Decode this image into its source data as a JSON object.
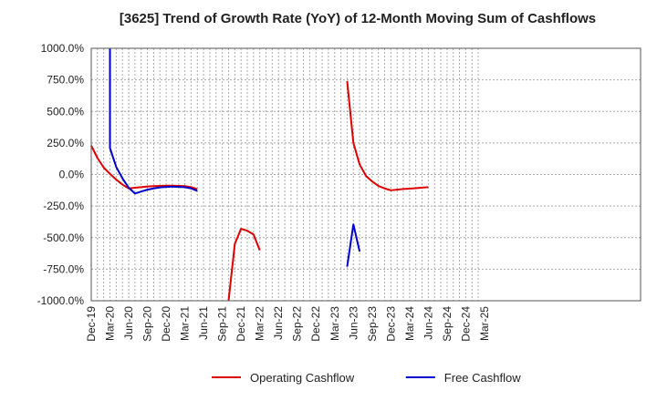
{
  "chart_data": {
    "type": "line",
    "title": "[3625]  Trend of Growth Rate (YoY) of 12-Month Moving Sum of Cashflows",
    "xlabel": "",
    "ylabel": "",
    "ylim": [
      -1000,
      1000
    ],
    "yticks": [
      "1000.0%",
      "750.0%",
      "500.0%",
      "250.0%",
      "0.0%",
      "-250.0%",
      "-500.0%",
      "-750.0%",
      "-1000.0%"
    ],
    "ytick_values": [
      1000,
      750,
      500,
      250,
      0,
      -250,
      -500,
      -750,
      -1000
    ],
    "x_categories": [
      "Dec-19",
      "Mar-20",
      "Jun-20",
      "Sep-20",
      "Dec-20",
      "Mar-21",
      "Jun-21",
      "Sep-21",
      "Dec-21",
      "Mar-22",
      "Jun-22",
      "Sep-22",
      "Dec-22",
      "Mar-23",
      "Jun-23",
      "Sep-23",
      "Dec-23",
      "Mar-24",
      "Jun-24",
      "Sep-24",
      "Dec-24",
      "Mar-25"
    ],
    "grid": true,
    "legend_position": "bottom",
    "series": [
      {
        "name": "Operating Cashflow",
        "color": "#dd0000",
        "points": [
          [
            "2019-12",
            230
          ],
          [
            "2020-01",
            130
          ],
          [
            "2020-02",
            55
          ],
          [
            "2020-03",
            5
          ],
          [
            "2020-04",
            -40
          ],
          [
            "2020-05",
            -80
          ],
          [
            "2020-06",
            -110
          ],
          [
            "2020-07",
            -105
          ],
          [
            "2020-08",
            -100
          ],
          [
            "2020-09",
            -95
          ],
          [
            "2020-10",
            -92
          ],
          [
            "2020-11",
            -90
          ],
          [
            "2020-12",
            -88
          ],
          [
            "2021-01",
            -88
          ],
          [
            "2021-02",
            -90
          ],
          [
            "2021-03",
            -92
          ],
          [
            "2021-04",
            -100
          ],
          [
            "2021-05",
            -115
          ]
        ]
      },
      {
        "name": "Operating Cashflow",
        "color": "#dd0000",
        "points": [
          [
            "2021-10",
            -1000
          ],
          [
            "2021-11",
            -550
          ],
          [
            "2021-12",
            -430
          ],
          [
            "2022-01",
            -445
          ],
          [
            "2022-02",
            -475
          ],
          [
            "2022-03",
            -600
          ]
        ]
      },
      {
        "name": "Operating Cashflow",
        "color": "#dd0000",
        "points": [
          [
            "2023-05",
            740
          ],
          [
            "2023-06",
            250
          ],
          [
            "2023-07",
            80
          ],
          [
            "2023-08",
            -10
          ],
          [
            "2023-09",
            -55
          ],
          [
            "2023-10",
            -90
          ],
          [
            "2023-11",
            -110
          ],
          [
            "2023-12",
            -125
          ],
          [
            "2024-01",
            -120
          ],
          [
            "2024-02",
            -115
          ],
          [
            "2024-03",
            -112
          ],
          [
            "2024-04",
            -108
          ],
          [
            "2024-05",
            -104
          ],
          [
            "2024-06",
            -100
          ]
        ]
      },
      {
        "name": "Free Cashflow",
        "color": "#0000cc",
        "points": [
          [
            "2020-03",
            1000
          ],
          [
            "2020-03",
            210
          ],
          [
            "2020-04",
            60
          ],
          [
            "2020-05",
            -30
          ],
          [
            "2020-06",
            -105
          ],
          [
            "2020-07",
            -150
          ],
          [
            "2020-08",
            -135
          ],
          [
            "2020-09",
            -120
          ],
          [
            "2020-10",
            -110
          ],
          [
            "2020-11",
            -102
          ],
          [
            "2020-12",
            -98
          ],
          [
            "2021-01",
            -96
          ],
          [
            "2021-02",
            -98
          ],
          [
            "2021-03",
            -100
          ],
          [
            "2021-04",
            -110
          ],
          [
            "2021-05",
            -130
          ]
        ]
      },
      {
        "name": "Free Cashflow",
        "color": "#0000cc",
        "points": [
          [
            "2023-05",
            -730
          ],
          [
            "2023-06",
            -395
          ],
          [
            "2023-07",
            -610
          ]
        ]
      }
    ],
    "legend": [
      {
        "label": "Operating Cashflow",
        "color": "#dd0000"
      },
      {
        "label": "Free Cashflow",
        "color": "#0000cc"
      }
    ]
  }
}
